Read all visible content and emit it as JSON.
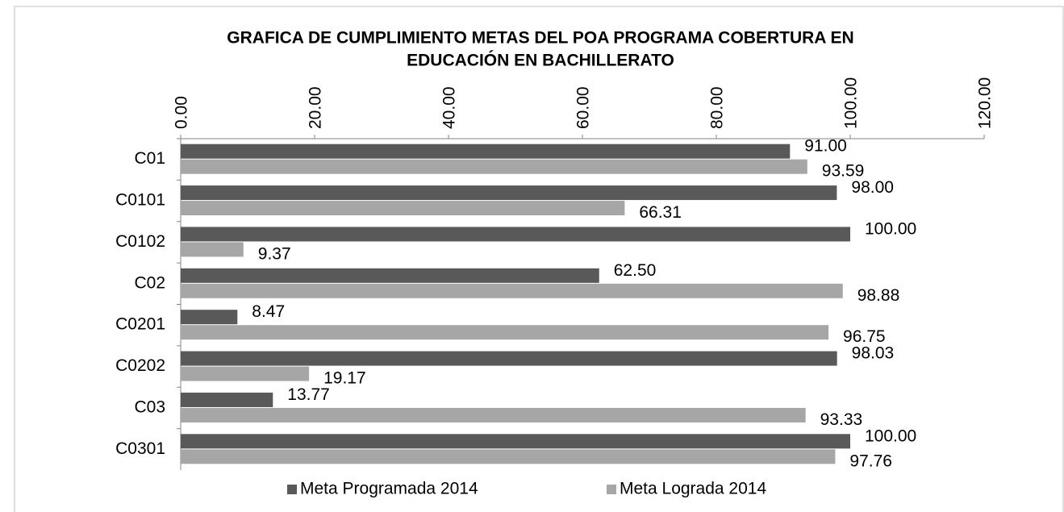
{
  "chart_data": {
    "type": "hbar",
    "title": [
      "GRAFICA DE CUMPLIMIENTO METAS DEL POA PROGRAMA COBERTURA EN",
      "EDUCACIÓN EN BACHILLERATO"
    ],
    "categories": [
      "C01",
      "C0101",
      "C0102",
      "C02",
      "C0201",
      "C0202",
      "C03",
      "C0301"
    ],
    "series": [
      {
        "name": "Meta Programada 2014",
        "color": "#595959",
        "values": [
          91,
          98,
          100,
          62.5,
          8.47,
          98.03,
          13.77,
          100
        ],
        "value_labels": [
          "91.00",
          "98.00",
          "100.00",
          "62.50",
          "8.47",
          "98.03",
          "13.77",
          "100.00"
        ]
      },
      {
        "name": "Meta Lograda 2014",
        "color": "#a6a6a6",
        "values": [
          93.59,
          66.31,
          9.37,
          98.88,
          96.75,
          19.17,
          93.33,
          97.76
        ],
        "value_labels": [
          "93.59",
          "66.31",
          "9.37",
          "98.88",
          "96.75",
          "19.17",
          "93.33",
          "97.76"
        ]
      }
    ],
    "xlim": [
      0,
      120
    ],
    "xticks": [
      {
        "value": 0,
        "label": "0.00"
      },
      {
        "value": 20,
        "label": "20.00"
      },
      {
        "value": 40,
        "label": "40.00"
      },
      {
        "value": 60,
        "label": "60.00"
      },
      {
        "value": 80,
        "label": "80.00"
      },
      {
        "value": 100,
        "label": "100.00"
      },
      {
        "value": 120,
        "label": "120.00"
      }
    ],
    "legend": "bottom"
  }
}
